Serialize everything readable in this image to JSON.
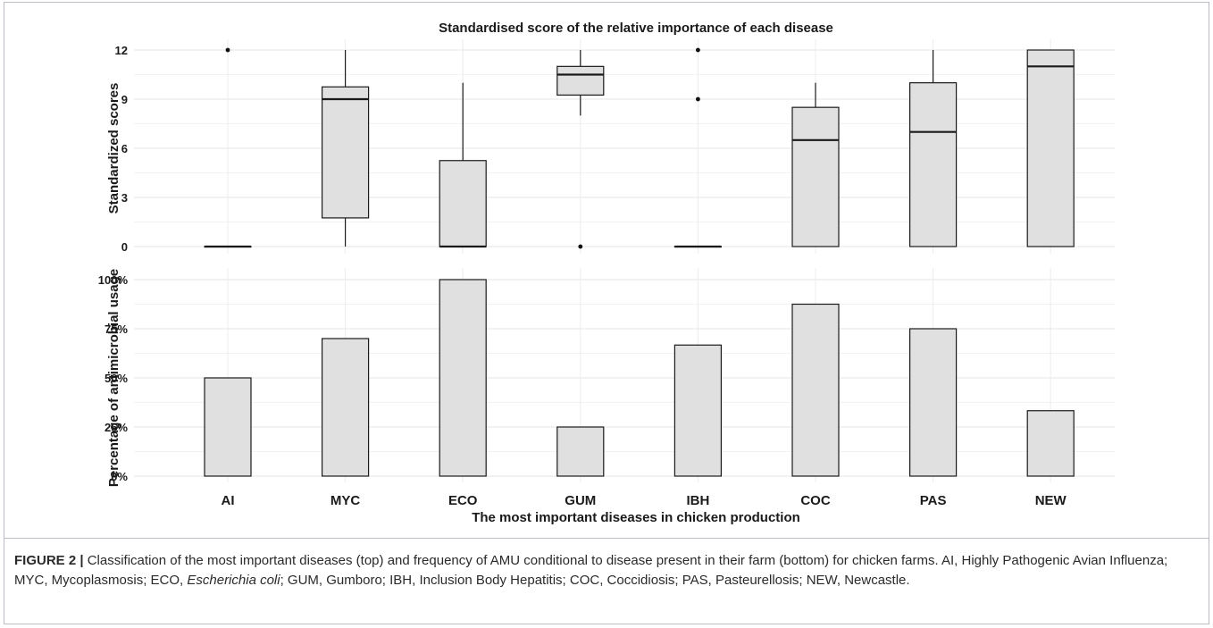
{
  "chart_data": [
    {
      "type": "boxplot",
      "title": "Standardised score of the relative importance of each disease",
      "ylabel": "Standardized scores",
      "xlabel": "",
      "ylim": [
        0,
        12
      ],
      "yticks": [
        0,
        3,
        6,
        9,
        12
      ],
      "grid": true,
      "categories": [
        "AI",
        "MYC",
        "ECO",
        "GUM",
        "IBH",
        "COC",
        "PAS",
        "NEW"
      ],
      "boxes": [
        {
          "category": "AI",
          "whisker_low": 0,
          "q1": 0,
          "median": 0,
          "q3": 0,
          "whisker_high": 0,
          "outliers": [
            12
          ]
        },
        {
          "category": "MYC",
          "whisker_low": 0,
          "q1": 1.75,
          "median": 9,
          "q3": 9.75,
          "whisker_high": 12,
          "outliers": []
        },
        {
          "category": "ECO",
          "whisker_low": 0,
          "q1": 0,
          "median": 0,
          "q3": 5.25,
          "whisker_high": 10,
          "outliers": []
        },
        {
          "category": "GUM",
          "whisker_low": 8,
          "q1": 9.25,
          "median": 10.5,
          "q3": 11,
          "whisker_high": 12,
          "outliers": [
            0
          ]
        },
        {
          "category": "IBH",
          "whisker_low": 0,
          "q1": 0,
          "median": 0,
          "q3": 0,
          "whisker_high": 0,
          "outliers": [
            9,
            12
          ]
        },
        {
          "category": "COC",
          "whisker_low": 0,
          "q1": 0,
          "median": 6.5,
          "q3": 8.5,
          "whisker_high": 10,
          "outliers": []
        },
        {
          "category": "PAS",
          "whisker_low": 0,
          "q1": 0,
          "median": 7,
          "q3": 10,
          "whisker_high": 12,
          "outliers": []
        },
        {
          "category": "NEW",
          "whisker_low": 0,
          "q1": 0,
          "median": 11,
          "q3": 12,
          "whisker_high": 12,
          "outliers": []
        }
      ],
      "box_fill": "#e0e0e0",
      "stroke": "#1a1a1a"
    },
    {
      "type": "bar",
      "title": "",
      "ylabel": "Percentage of antimicrobial usage",
      "xlabel": "The most important diseases in chicken production",
      "ylim": [
        0,
        100
      ],
      "yticks": [
        0,
        25,
        50,
        75,
        100
      ],
      "ytick_labels": [
        "0%",
        "25%",
        "50%",
        "75%",
        "100%"
      ],
      "grid": true,
      "categories": [
        "AI",
        "MYC",
        "ECO",
        "GUM",
        "IBH",
        "COC",
        "PAS",
        "NEW"
      ],
      "values": [
        50,
        70,
        100,
        25,
        66.7,
        87.5,
        75,
        33.3
      ],
      "bar_fill": "#e0e0e0",
      "stroke": "#1a1a1a"
    }
  ],
  "caption": {
    "label": "FIGURE 2 |",
    "part1": " Classification of the most important diseases (top) and frequency of AMU conditional to disease present in their farm (bottom) for chicken farms. AI, Highly Pathogenic Avian Influenza; MYC, Mycoplasmosis; ECO, ",
    "italic": "Escherichia coli",
    "part2": "; GUM, Gumboro; IBH, Inclusion Body Hepatitis; COC, Coccidiosis; PAS, Pasteurellosis; NEW, Newcastle."
  }
}
